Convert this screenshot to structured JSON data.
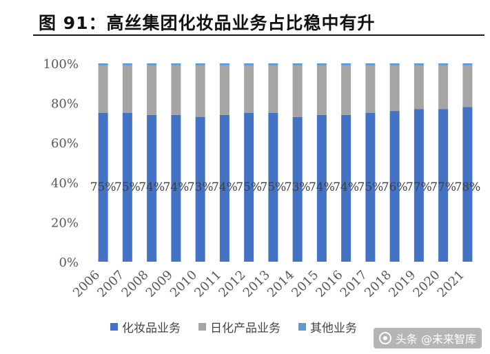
{
  "header": {
    "title": "图 91：高丝集团化妆品业务占比稳中有升"
  },
  "colors": {
    "cosmetics": "#4472C4",
    "daily_chemicals": "#A5A5A5",
    "other": "#5B9BD5"
  },
  "chart_data": {
    "type": "bar",
    "stacked": true,
    "title": "图 91：高丝集团化妆品业务占比稳中有升",
    "categories": [
      "2006",
      "2007",
      "2008",
      "2009",
      "2010",
      "2011",
      "2012",
      "2013",
      "2014",
      "2015",
      "2016",
      "2017",
      "2018",
      "2019",
      "2020",
      "2021"
    ],
    "series": [
      {
        "name": "化妆品业务",
        "values": [
          75,
          75,
          74,
          74,
          73,
          74,
          75,
          75,
          73,
          74,
          74,
          75,
          76,
          77,
          77,
          78
        ],
        "labels": [
          "75%",
          "75%",
          "74%",
          "74%",
          "73%",
          "74%",
          "75%",
          "75%",
          "73%",
          "74%",
          "74%",
          "75%",
          "76%",
          "77%",
          "77%",
          "78%"
        ]
      },
      {
        "name": "日化产品业务",
        "values": [
          24,
          24,
          25,
          25,
          26,
          25,
          24,
          24,
          26,
          25,
          25,
          24,
          23,
          22,
          22,
          21
        ]
      },
      {
        "name": "其他业务",
        "values": [
          1,
          1,
          1,
          1,
          1,
          1,
          1,
          1,
          1,
          1,
          1,
          1,
          1,
          1,
          1,
          1
        ]
      }
    ],
    "yticks": [
      "0%",
      "20%",
      "40%",
      "60%",
      "80%",
      "100%"
    ],
    "ylim": [
      0,
      100
    ],
    "xlabel": "",
    "ylabel": "",
    "grid": false,
    "legend_position": "bottom"
  },
  "legend": {
    "items": [
      "化妆品业务",
      "日化产品业务",
      "其他业务"
    ]
  },
  "watermark": {
    "text": "头条 @未来智库"
  }
}
